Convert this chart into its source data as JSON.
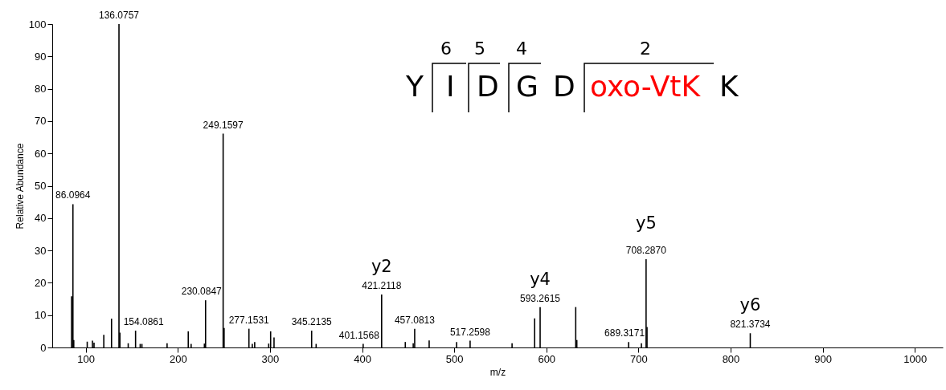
{
  "chart_data": {
    "type": "bar",
    "xlabel": "m/z",
    "ylabel": "Relative Abundance",
    "x": [
      84.6,
      86.0964,
      87.0,
      101.6,
      107.3,
      109.0,
      119.6,
      128.0,
      136.0757,
      137.1,
      146.1,
      154.0861,
      159.1,
      161.0,
      188.3,
      211.3,
      214.4,
      228.8,
      230.0847,
      249.1597,
      250.2,
      277.1531,
      280.8,
      283.4,
      298.6,
      300.7,
      304.4,
      345.2135,
      350.1,
      401.1568,
      421.2118,
      446.9,
      455.5,
      457.0813,
      472.8,
      502.6,
      517.2598,
      562.8,
      587.3,
      593.2615,
      631.9,
      633.1,
      689.3171,
      703.2,
      708.287,
      709.3,
      821.3734
    ],
    "series": [
      {
        "color": "#000000",
        "values": [
          15.8,
          44.3,
          2.3,
          1.8,
          2.1,
          1.5,
          3.9,
          8.9,
          100,
          4.6,
          1.3,
          5.2,
          1.1,
          1.1,
          1.3,
          5.0,
          1.1,
          1.2,
          14.6,
          66.1,
          6.0,
          5.8,
          1.1,
          1.7,
          1.2,
          5.0,
          3.1,
          5.2,
          1.1,
          1.1,
          16.4,
          1.7,
          1.3,
          5.8,
          2.2,
          1.7,
          2.1,
          1.3,
          9.0,
          12.5,
          12.5,
          2.3,
          1.7,
          1.3,
          27.3,
          6.3,
          4.4
        ]
      }
    ],
    "xlim": [
      68,
      1026
    ],
    "xticks": [
      100,
      200,
      300,
      400,
      500,
      600,
      700,
      800,
      900,
      {
        "value": 1000,
        "label": "1000"
      }
    ],
    "ylim": [
      0,
      100
    ],
    "yticks": [
      0,
      10,
      20,
      30,
      40,
      50,
      60,
      70,
      80,
      90,
      100
    ],
    "annotations": [
      {
        "text": "y2",
        "x": 421.2118,
        "y": 16.4
      },
      {
        "text": "y4",
        "x": 593.2615,
        "y": 12.5
      },
      {
        "text": "y5",
        "x": 708.287,
        "y": 27.3
      },
      {
        "text": "y6",
        "x": 821.3734,
        "y": 4.4
      },
      {
        "text": "86.0964",
        "x": 86.0964,
        "y": 44.3
      },
      {
        "text": "136.0757",
        "x": 136.0757,
        "y": 100
      },
      {
        "text": "154.0861",
        "x": 154.0861,
        "y": 5.2
      },
      {
        "text": "230.0847",
        "x": 230.0847,
        "y": 14.6
      },
      {
        "text": "249.1597",
        "x": 249.1597,
        "y": 66.1
      },
      {
        "text": "277.1531",
        "x": 277.1531,
        "y": 5.8
      },
      {
        "text": "345.2135",
        "x": 345.2135,
        "y": 5.2
      },
      {
        "text": "401.1568",
        "x": 401.1568,
        "y": 1.1
      },
      {
        "text": "421.2118",
        "x": 421.2118,
        "y": 16.4
      },
      {
        "text": "457.0813",
        "x": 457.0813,
        "y": 5.8
      },
      {
        "text": "517.2598",
        "x": 517.2598,
        "y": 2.1
      },
      {
        "text": "593.2615",
        "x": 593.2615,
        "y": 12.5
      },
      {
        "text": "689.3171",
        "x": 689.3171,
        "y": 1.7
      },
      {
        "text": "708.2870",
        "x": 708.287,
        "y": 27.3
      },
      {
        "text": "821.3734",
        "x": 821.3734,
        "y": 4.4
      },
      "Y",
      "I",
      "D",
      "G",
      "D",
      "oxo-VtK",
      "K",
      "6",
      "5",
      "4",
      "2"
    ]
  }
}
